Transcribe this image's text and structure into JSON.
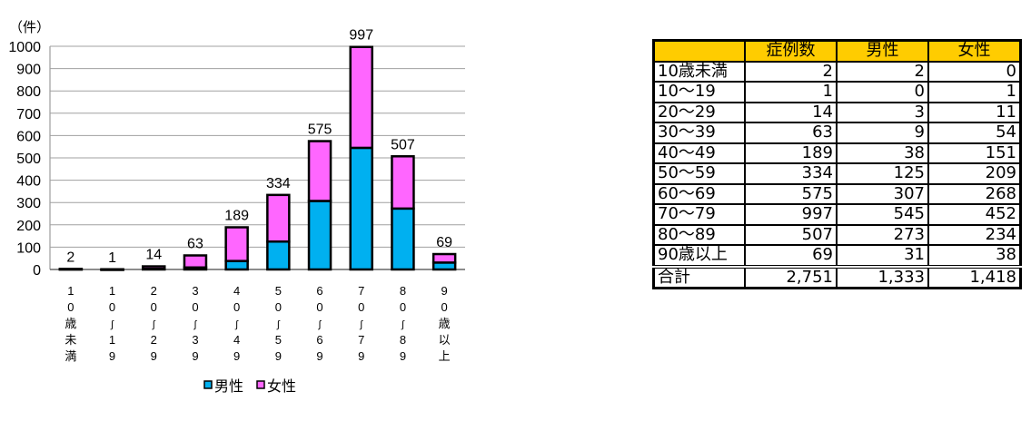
{
  "chart_data": {
    "type": "bar",
    "stacked": true,
    "unit_label": "（件）",
    "categories": [
      "10歳未満",
      "10～19",
      "20～29",
      "30～39",
      "40～49",
      "50～59",
      "60～69",
      "70～79",
      "80～89",
      "90歳以上"
    ],
    "series": [
      {
        "name": "男性",
        "color": "#00b0f0",
        "values": [
          2,
          0,
          3,
          9,
          38,
          125,
          307,
          545,
          273,
          31
        ]
      },
      {
        "name": "女性",
        "color": "#ff66ff",
        "values": [
          0,
          1,
          11,
          54,
          151,
          209,
          268,
          452,
          234,
          38
        ]
      }
    ],
    "totals": [
      2,
      1,
      14,
      63,
      189,
      334,
      575,
      997,
      507,
      69
    ],
    "ylim": [
      0,
      1000
    ],
    "yticks": [
      0,
      100,
      200,
      300,
      400,
      500,
      600,
      700,
      800,
      900,
      1000
    ],
    "grid": true,
    "legend": "bottom"
  },
  "table": {
    "headers": [
      "",
      "症例数",
      "男性",
      "女性"
    ],
    "header_color": "#ffcc00",
    "rows": [
      [
        "10歳未満",
        "2",
        "2",
        "0"
      ],
      [
        "10～19",
        "1",
        "0",
        "1"
      ],
      [
        "20～29",
        "14",
        "3",
        "11"
      ],
      [
        "30～39",
        "63",
        "9",
        "54"
      ],
      [
        "40～49",
        "189",
        "38",
        "151"
      ],
      [
        "50～59",
        "334",
        "125",
        "209"
      ],
      [
        "60～69",
        "575",
        "307",
        "268"
      ],
      [
        "70～79",
        "997",
        "545",
        "452"
      ],
      [
        "80～89",
        "507",
        "273",
        "234"
      ],
      [
        "90歳以上",
        "69",
        "31",
        "38"
      ]
    ],
    "total": [
      "合計",
      "2,751",
      "1,333",
      "1,418"
    ]
  }
}
